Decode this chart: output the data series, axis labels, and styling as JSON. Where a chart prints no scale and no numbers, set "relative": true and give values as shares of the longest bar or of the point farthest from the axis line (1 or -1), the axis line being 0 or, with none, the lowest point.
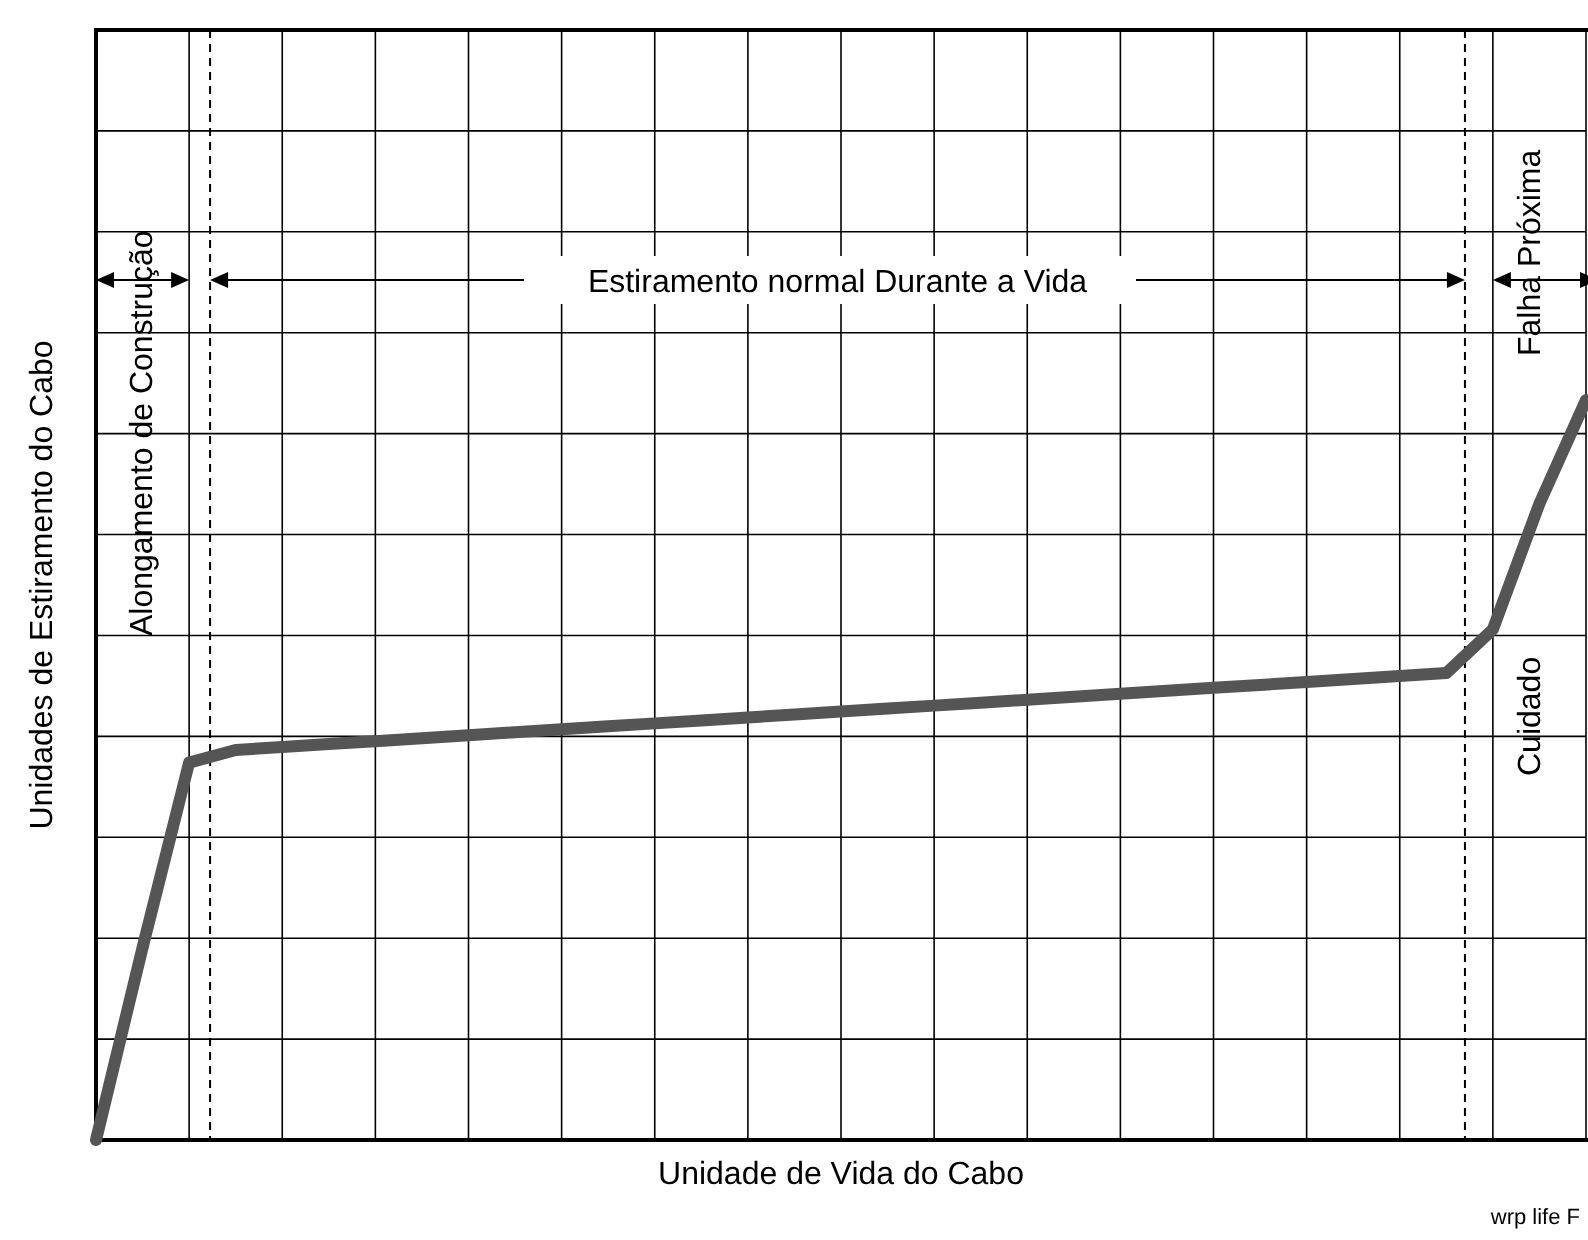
{
  "chart_data": {
    "type": "line",
    "relative": true,
    "grid": true,
    "line_style": "solid",
    "xlabel": "Unidade de Vida do Cabo",
    "ylabel": "Unidades de Estiramento do Cabo",
    "annotations": [
      "Alongamento de Construção",
      "Estiramento normal Durante a Vida",
      "Falha Próxima",
      "Cuidado",
      "wrp  life  F"
    ],
    "categories": [
      null,
      null,
      null,
      null,
      null,
      null,
      null,
      null,
      null,
      null,
      null,
      null,
      null,
      null,
      null,
      null,
      null,
      null,
      null,
      null,
      null,
      null,
      null,
      null,
      null,
      null,
      null,
      null,
      null,
      null,
      null,
      null,
      null
    ],
    "series": [
      {
        "color": "#555555",
        "values": [
          0,
          0.26,
          0.51,
          0.527,
          0.531,
          0.535,
          0.539,
          0.543,
          0.547,
          0.551,
          0.555,
          0.559,
          0.563,
          0.567,
          0.571,
          0.575,
          0.579,
          0.583,
          0.587,
          0.591,
          0.595,
          0.599,
          0.603,
          0.607,
          0.611,
          0.615,
          0.619,
          0.623,
          0.627,
          0.631,
          0.69,
          0.86,
          1
        ]
      }
    ]
  }
}
